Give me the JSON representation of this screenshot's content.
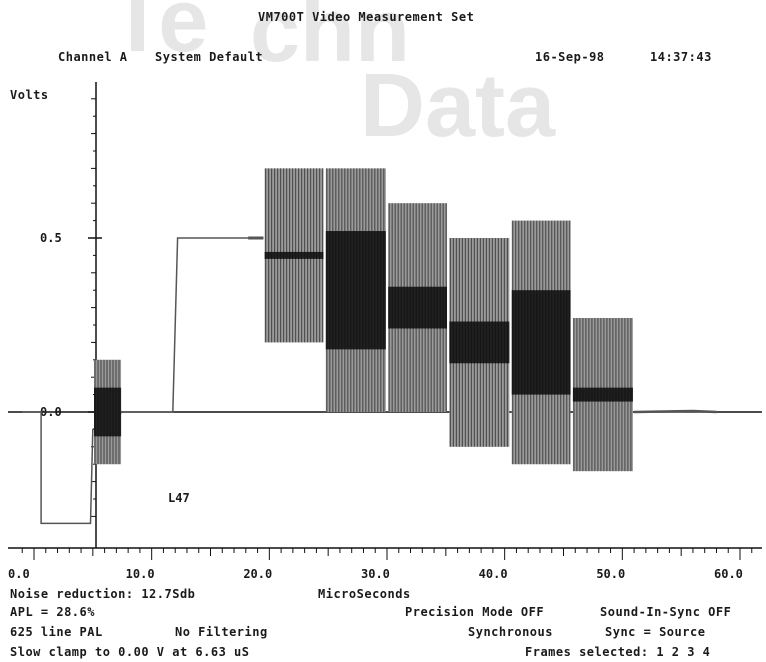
{
  "header": {
    "title": "VM700T Video Measurement Set",
    "channel": "Channel A",
    "setup": "System Default",
    "date": "16-Sep-98",
    "time": "14:37:43"
  },
  "watermark": [
    "Te",
    "chn",
    "Data"
  ],
  "colors": {
    "trace": "#555555",
    "burst_dark": "#0a0a0a",
    "axis": "#111111",
    "background": "#ffffff"
  },
  "chart_data": {
    "type": "line",
    "ylabel": "Volts",
    "xlabel": "MicroSeconds",
    "xlim": [
      -1,
      62
    ],
    "ylim": [
      -0.35,
      0.92
    ],
    "x_ticks": [
      0,
      10,
      20,
      30,
      40,
      50,
      60
    ],
    "x_tick_labels": [
      "0.0",
      "10.0",
      "20.0",
      "30.0",
      "40.0",
      "50.0",
      "60.0"
    ],
    "y_ticks": [
      0,
      0.5
    ],
    "y_tick_labels": [
      "0.0",
      "0.5"
    ],
    "zero_line": true,
    "annotation": "L47",
    "baseline": [
      [
        -1,
        0
      ],
      [
        0.6,
        0
      ],
      [
        0.6,
        -0.32
      ],
      [
        4.8,
        -0.32
      ],
      [
        5.0,
        -0.05
      ],
      [
        7.5,
        0
      ],
      [
        11.8,
        0
      ],
      [
        12.2,
        0.5
      ],
      [
        18.2,
        0.5
      ],
      [
        19.5,
        0.5
      ]
    ],
    "chroma_packets": [
      {
        "x_start": 5.1,
        "x_end": 7.4,
        "center": 0.0,
        "amplitude": 0.15,
        "core": 0.07
      },
      {
        "x_start": 19.6,
        "x_end": 24.6,
        "center": 0.45,
        "amplitude": 0.25,
        "core": 0.01
      },
      {
        "x_start": 24.8,
        "x_end": 29.9,
        "center": 0.35,
        "amplitude": 0.35,
        "core": 0.17
      },
      {
        "x_start": 30.1,
        "x_end": 35.1,
        "center": 0.3,
        "amplitude": 0.3,
        "core": 0.06
      },
      {
        "x_start": 35.3,
        "x_end": 40.4,
        "center": 0.2,
        "amplitude": 0.3,
        "core": 0.06
      },
      {
        "x_start": 40.6,
        "x_end": 45.6,
        "center": 0.2,
        "amplitude": 0.35,
        "core": 0.15
      },
      {
        "x_start": 45.8,
        "x_end": 50.9,
        "center": 0.05,
        "amplitude": 0.22,
        "core": 0.02
      }
    ],
    "tail": [
      [
        51.0,
        0
      ],
      [
        56.0,
        0.003
      ],
      [
        58.0,
        0
      ]
    ]
  },
  "footer": {
    "noise_reduction": "Noise reduction: 12.7Sdb",
    "apl": "APL = 28.6%",
    "line_standard": "625 line PAL",
    "filtering": "No Filtering",
    "slow_clamp": "Slow clamp to 0.00 V at 6.63 uS",
    "precision_mode": "Precision Mode OFF",
    "sound_in_sync": "Sound-In-Sync OFF",
    "synchronous": "Synchronous",
    "sync_source": "Sync = Source",
    "frames_selected": "Frames selected: 1 2 3 4"
  }
}
